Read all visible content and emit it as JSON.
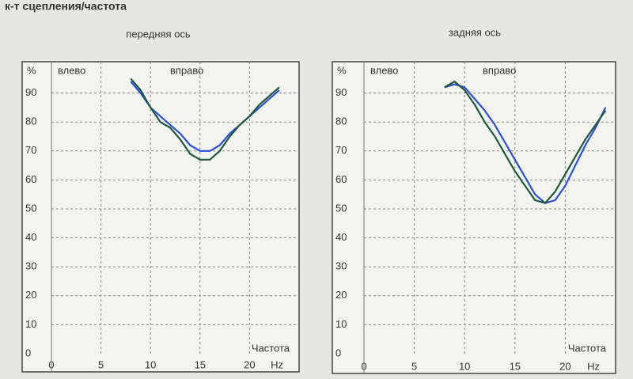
{
  "header": {
    "title": "к-т сцепления/частота"
  },
  "chart_data": [
    {
      "type": "line",
      "title": "передняя ось",
      "y_label": "%",
      "x_label": "Частота",
      "x_unit": "Hz",
      "xlim": [
        0,
        25
      ],
      "xticks": [
        0,
        5,
        10,
        15,
        20
      ],
      "ylim": [
        0,
        100
      ],
      "yticks": [
        0,
        10,
        20,
        30,
        40,
        50,
        60,
        70,
        80,
        90
      ],
      "grid": true,
      "x": [
        8,
        9,
        10,
        11,
        12,
        13,
        14,
        15,
        16,
        17,
        18,
        19,
        20,
        21,
        22,
        23
      ],
      "series": [
        {
          "name": "влево",
          "color": "#2b4fd8",
          "values": [
            94,
            90,
            85,
            82,
            79,
            76,
            72,
            70,
            70,
            72,
            76,
            79,
            82,
            85,
            88,
            91
          ]
        },
        {
          "name": "вправо",
          "color": "#1e5a3a",
          "values": [
            95,
            91,
            85,
            80,
            78,
            74,
            69,
            67,
            67,
            70,
            75,
            79,
            82,
            86,
            89,
            92
          ]
        }
      ]
    },
    {
      "type": "line",
      "title": "задняя ось",
      "y_label": "%",
      "x_label": "Частота",
      "x_unit": "Hz",
      "xlim": [
        0,
        25
      ],
      "xticks": [
        0,
        5,
        10,
        15,
        20
      ],
      "ylim": [
        0,
        100
      ],
      "yticks": [
        0,
        10,
        20,
        30,
        40,
        50,
        60,
        70,
        80,
        90
      ],
      "grid": true,
      "x": [
        8,
        9,
        10,
        11,
        12,
        13,
        14,
        15,
        16,
        17,
        18,
        19,
        20,
        21,
        22,
        23,
        24
      ],
      "series": [
        {
          "name": "влево",
          "color": "#2b4fd8",
          "values": [
            92,
            93,
            92,
            88,
            84,
            79,
            73,
            67,
            61,
            55,
            52,
            53,
            58,
            65,
            72,
            78,
            85
          ]
        },
        {
          "name": "вправо",
          "color": "#1e5a3a",
          "values": [
            92,
            94,
            91,
            86,
            80,
            75,
            69,
            63,
            58,
            53,
            52,
            56,
            62,
            68,
            74,
            79,
            84
          ]
        }
      ]
    }
  ]
}
